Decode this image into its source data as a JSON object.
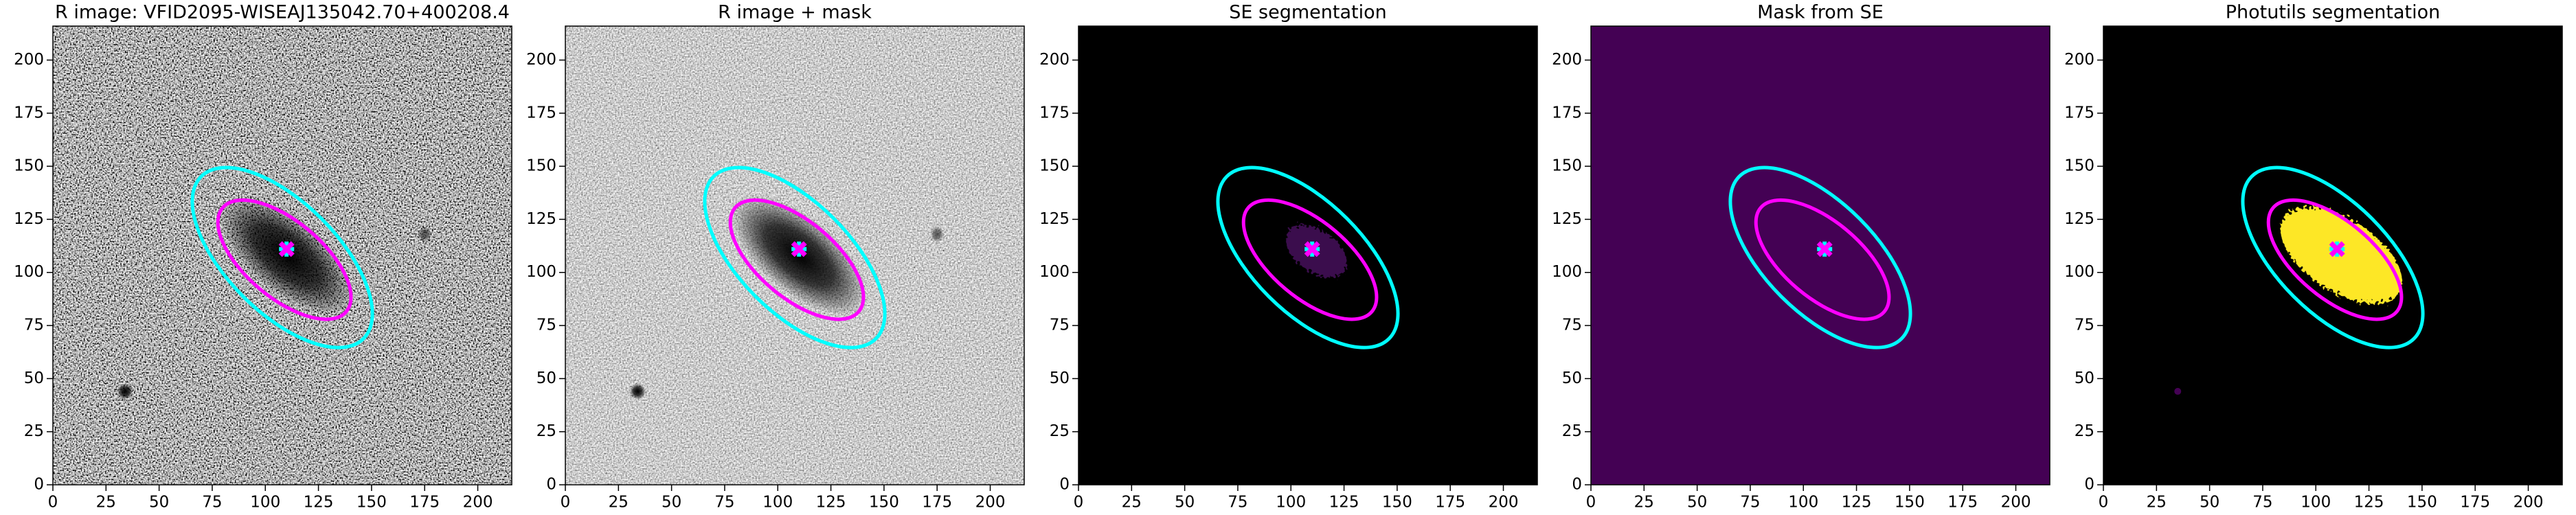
{
  "chart_data": [
    {
      "type": "image",
      "title": "R image: VFID2095-WISEAJ135042.70+400208.4",
      "xlim": [
        0,
        216
      ],
      "ylim": [
        0,
        216
      ],
      "xticks": [
        0,
        25,
        50,
        75,
        100,
        125,
        150,
        175,
        200
      ],
      "yticks": [
        0,
        25,
        50,
        75,
        100,
        125,
        150,
        175,
        200
      ],
      "ellipses": [
        {
          "color": "#00ffff",
          "x": 108,
          "y": 107,
          "width": 108,
          "height": 52,
          "angle": -45
        },
        {
          "color": "#ff00ff",
          "x": 109,
          "y": 106,
          "width": 76,
          "height": 36,
          "angle": -40
        }
      ],
      "center": {
        "x": 110,
        "y": 111
      }
    },
    {
      "type": "image",
      "title": "R image + mask",
      "xlim": [
        0,
        216
      ],
      "ylim": [
        0,
        216
      ],
      "xticks": [
        0,
        25,
        50,
        75,
        100,
        125,
        150,
        175,
        200
      ],
      "yticks": [
        0,
        25,
        50,
        75,
        100,
        125,
        150,
        175,
        200
      ],
      "ellipses": [
        {
          "color": "#00ffff",
          "x": 108,
          "y": 107,
          "width": 108,
          "height": 52,
          "angle": -45
        },
        {
          "color": "#ff00ff",
          "x": 109,
          "y": 106,
          "width": 76,
          "height": 36,
          "angle": -40
        }
      ],
      "center": {
        "x": 110,
        "y": 111
      }
    },
    {
      "type": "image",
      "title": "SE segmentation",
      "xlim": [
        0,
        216
      ],
      "ylim": [
        0,
        216
      ],
      "xticks": [
        0,
        25,
        50,
        75,
        100,
        125,
        150,
        175,
        200
      ],
      "yticks": [
        0,
        25,
        50,
        75,
        100,
        125,
        150,
        175,
        200
      ],
      "ellipses": [
        {
          "color": "#00ffff",
          "x": 108,
          "y": 107,
          "width": 108,
          "height": 52,
          "angle": -45
        },
        {
          "color": "#ff00ff",
          "x": 109,
          "y": 106,
          "width": 76,
          "height": 36,
          "angle": -40
        }
      ],
      "center": {
        "x": 110,
        "y": 111
      }
    },
    {
      "type": "image",
      "title": "Mask from SE",
      "xlim": [
        0,
        216
      ],
      "ylim": [
        0,
        216
      ],
      "xticks": [
        0,
        25,
        50,
        75,
        100,
        125,
        150,
        175,
        200
      ],
      "yticks": [
        0,
        25,
        50,
        75,
        100,
        125,
        150,
        175,
        200
      ],
      "ellipses": [
        {
          "color": "#00ffff",
          "x": 108,
          "y": 107,
          "width": 108,
          "height": 52,
          "angle": -45
        },
        {
          "color": "#ff00ff",
          "x": 109,
          "y": 106,
          "width": 76,
          "height": 36,
          "angle": -40
        }
      ],
      "center": {
        "x": 110,
        "y": 111
      }
    },
    {
      "type": "image",
      "title": "Photutils segmentation",
      "xlim": [
        0,
        216
      ],
      "ylim": [
        0,
        216
      ],
      "xticks": [
        0,
        25,
        50,
        75,
        100,
        125,
        150,
        175,
        200
      ],
      "yticks": [
        0,
        25,
        50,
        75,
        100,
        125,
        150,
        175,
        200
      ],
      "ellipses": [
        {
          "color": "#00ffff",
          "x": 108,
          "y": 107,
          "width": 108,
          "height": 52,
          "angle": -45
        },
        {
          "color": "#ff00ff",
          "x": 109,
          "y": 106,
          "width": 76,
          "height": 36,
          "angle": -40
        }
      ],
      "center": {
        "x": 110,
        "y": 111
      }
    }
  ]
}
